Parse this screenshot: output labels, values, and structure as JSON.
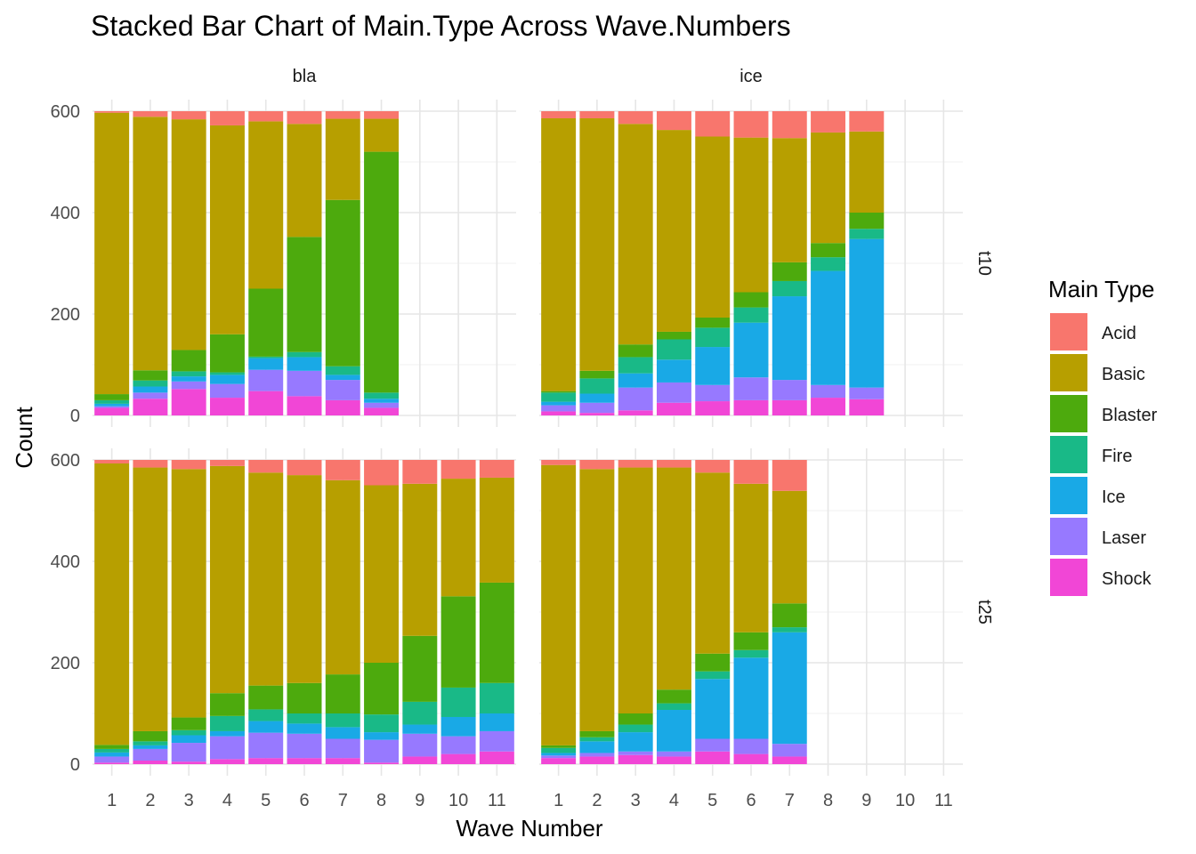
{
  "chart_data": {
    "type": "bar",
    "stacked": true,
    "title": "Stacked Bar Chart of Main.Type Across Wave.Numbers",
    "xlabel": "Wave Number",
    "ylabel": "Count",
    "ylim": [
      0,
      600
    ],
    "yticks": [
      "0",
      "200",
      "400",
      "600"
    ],
    "categories": [
      "1",
      "2",
      "3",
      "4",
      "5",
      "6",
      "7",
      "8",
      "9",
      "10",
      "11"
    ],
    "grid": true,
    "legend": {
      "title": "Main Type",
      "position": "right",
      "items": [
        {
          "name": "Acid",
          "color": "#F8766D"
        },
        {
          "name": "Basic",
          "color": "#B79F00"
        },
        {
          "name": "Blaster",
          "color": "#4DAA0D"
        },
        {
          "name": "Fire",
          "color": "#19B987"
        },
        {
          "name": "Ice",
          "color": "#19A9E6"
        },
        {
          "name": "Laser",
          "color": "#9779FF"
        },
        {
          "name": "Shock",
          "color": "#F146D6"
        }
      ]
    },
    "stack_order": [
      "Shock",
      "Laser",
      "Ice",
      "Fire",
      "Blaster",
      "Basic",
      "Acid"
    ],
    "col_facets": [
      "bla",
      "ice"
    ],
    "row_facets": [
      "t10",
      "t25"
    ],
    "panels": [
      {
        "col": "bla",
        "row": "t10",
        "bars": [
          {
            "x": "1",
            "Shock": 15,
            "Laser": 3,
            "Ice": 5,
            "Fire": 7,
            "Blaster": 12,
            "Basic": 555,
            "Acid": 3
          },
          {
            "x": "2",
            "Shock": 33,
            "Laser": 12,
            "Ice": 12,
            "Fire": 12,
            "Blaster": 20,
            "Basic": 500,
            "Acid": 11
          },
          {
            "x": "3",
            "Shock": 52,
            "Laser": 15,
            "Ice": 10,
            "Fire": 10,
            "Blaster": 42,
            "Basic": 455,
            "Acid": 16
          },
          {
            "x": "4",
            "Shock": 35,
            "Laser": 27,
            "Ice": 18,
            "Fire": 5,
            "Blaster": 75,
            "Basic": 412,
            "Acid": 28
          },
          {
            "x": "5",
            "Shock": 48,
            "Laser": 42,
            "Ice": 23,
            "Fire": 3,
            "Blaster": 134,
            "Basic": 330,
            "Acid": 20
          },
          {
            "x": "6",
            "Shock": 38,
            "Laser": 50,
            "Ice": 27,
            "Fire": 10,
            "Blaster": 227,
            "Basic": 223,
            "Acid": 25
          },
          {
            "x": "7",
            "Shock": 30,
            "Laser": 40,
            "Ice": 10,
            "Fire": 17,
            "Blaster": 328,
            "Basic": 160,
            "Acid": 15
          },
          {
            "x": "8",
            "Shock": 15,
            "Laser": 10,
            "Ice": 8,
            "Fire": 12,
            "Blaster": 475,
            "Basic": 65,
            "Acid": 15
          },
          {
            "x": "9"
          },
          {
            "x": "10"
          },
          {
            "x": "11"
          }
        ]
      },
      {
        "col": "ice",
        "row": "t10",
        "bars": [
          {
            "x": "1",
            "Shock": 8,
            "Laser": 12,
            "Ice": 7,
            "Fire": 18,
            "Blaster": 3,
            "Basic": 538,
            "Acid": 14
          },
          {
            "x": "2",
            "Shock": 5,
            "Laser": 20,
            "Ice": 18,
            "Fire": 30,
            "Blaster": 15,
            "Basic": 498,
            "Acid": 14
          },
          {
            "x": "3",
            "Shock": 10,
            "Laser": 45,
            "Ice": 28,
            "Fire": 32,
            "Blaster": 25,
            "Basic": 435,
            "Acid": 25
          },
          {
            "x": "4",
            "Shock": 25,
            "Laser": 40,
            "Ice": 45,
            "Fire": 40,
            "Blaster": 15,
            "Basic": 398,
            "Acid": 37
          },
          {
            "x": "5",
            "Shock": 28,
            "Laser": 32,
            "Ice": 75,
            "Fire": 38,
            "Blaster": 20,
            "Basic": 357,
            "Acid": 50
          },
          {
            "x": "6",
            "Shock": 30,
            "Laser": 45,
            "Ice": 108,
            "Fire": 30,
            "Blaster": 30,
            "Basic": 305,
            "Acid": 52
          },
          {
            "x": "7",
            "Shock": 30,
            "Laser": 40,
            "Ice": 165,
            "Fire": 30,
            "Blaster": 37,
            "Basic": 245,
            "Acid": 53
          },
          {
            "x": "8",
            "Shock": 35,
            "Laser": 25,
            "Ice": 225,
            "Fire": 27,
            "Blaster": 28,
            "Basic": 218,
            "Acid": 42
          },
          {
            "x": "9",
            "Shock": 32,
            "Laser": 23,
            "Ice": 293,
            "Fire": 20,
            "Blaster": 32,
            "Basic": 160,
            "Acid": 40
          },
          {
            "x": "10"
          },
          {
            "x": "11"
          }
        ]
      },
      {
        "col": "bla",
        "row": "t25",
        "bars": [
          {
            "x": "1",
            "Shock": 3,
            "Laser": 12,
            "Ice": 8,
            "Fire": 7,
            "Blaster": 8,
            "Basic": 555,
            "Acid": 7
          },
          {
            "x": "2",
            "Shock": 7,
            "Laser": 23,
            "Ice": 7,
            "Fire": 8,
            "Blaster": 20,
            "Basic": 520,
            "Acid": 15
          },
          {
            "x": "3",
            "Shock": 5,
            "Laser": 37,
            "Ice": 15,
            "Fire": 10,
            "Blaster": 25,
            "Basic": 490,
            "Acid": 18
          },
          {
            "x": "4",
            "Shock": 10,
            "Laser": 45,
            "Ice": 10,
            "Fire": 30,
            "Blaster": 45,
            "Basic": 448,
            "Acid": 12
          },
          {
            "x": "5",
            "Shock": 12,
            "Laser": 50,
            "Ice": 23,
            "Fire": 23,
            "Blaster": 47,
            "Basic": 420,
            "Acid": 25
          },
          {
            "x": "6",
            "Shock": 12,
            "Laser": 48,
            "Ice": 20,
            "Fire": 20,
            "Blaster": 60,
            "Basic": 410,
            "Acid": 30
          },
          {
            "x": "7",
            "Shock": 12,
            "Laser": 38,
            "Ice": 23,
            "Fire": 27,
            "Blaster": 77,
            "Basic": 383,
            "Acid": 40
          },
          {
            "x": "8",
            "Shock": 3,
            "Laser": 45,
            "Ice": 15,
            "Fire": 35,
            "Blaster": 102,
            "Basic": 350,
            "Acid": 50
          },
          {
            "x": "9",
            "Shock": 15,
            "Laser": 45,
            "Ice": 18,
            "Fire": 45,
            "Blaster": 130,
            "Basic": 300,
            "Acid": 47
          },
          {
            "x": "10",
            "Shock": 20,
            "Laser": 35,
            "Ice": 38,
            "Fire": 58,
            "Blaster": 180,
            "Basic": 232,
            "Acid": 37
          },
          {
            "x": "11",
            "Shock": 25,
            "Laser": 40,
            "Ice": 35,
            "Fire": 60,
            "Blaster": 198,
            "Basic": 207,
            "Acid": 35
          }
        ]
      },
      {
        "col": "ice",
        "row": "t25",
        "bars": [
          {
            "x": "1",
            "Shock": 12,
            "Laser": 5,
            "Ice": 5,
            "Fire": 10,
            "Blaster": 5,
            "Basic": 553,
            "Acid": 10
          },
          {
            "x": "2",
            "Shock": 15,
            "Laser": 7,
            "Ice": 23,
            "Fire": 8,
            "Blaster": 12,
            "Basic": 517,
            "Acid": 18
          },
          {
            "x": "3",
            "Shock": 18,
            "Laser": 7,
            "Ice": 38,
            "Fire": 15,
            "Blaster": 22,
            "Basic": 485,
            "Acid": 15
          },
          {
            "x": "4",
            "Shock": 15,
            "Laser": 10,
            "Ice": 82,
            "Fire": 13,
            "Blaster": 27,
            "Basic": 438,
            "Acid": 15
          },
          {
            "x": "5",
            "Shock": 25,
            "Laser": 25,
            "Ice": 118,
            "Fire": 15,
            "Blaster": 35,
            "Basic": 357,
            "Acid": 25
          },
          {
            "x": "6",
            "Shock": 20,
            "Laser": 30,
            "Ice": 160,
            "Fire": 15,
            "Blaster": 35,
            "Basic": 293,
            "Acid": 47
          },
          {
            "x": "7",
            "Shock": 15,
            "Laser": 25,
            "Ice": 220,
            "Fire": 10,
            "Blaster": 47,
            "Basic": 222,
            "Acid": 61
          },
          {
            "x": "8"
          },
          {
            "x": "9"
          },
          {
            "x": "10"
          },
          {
            "x": "11"
          }
        ]
      }
    ]
  }
}
